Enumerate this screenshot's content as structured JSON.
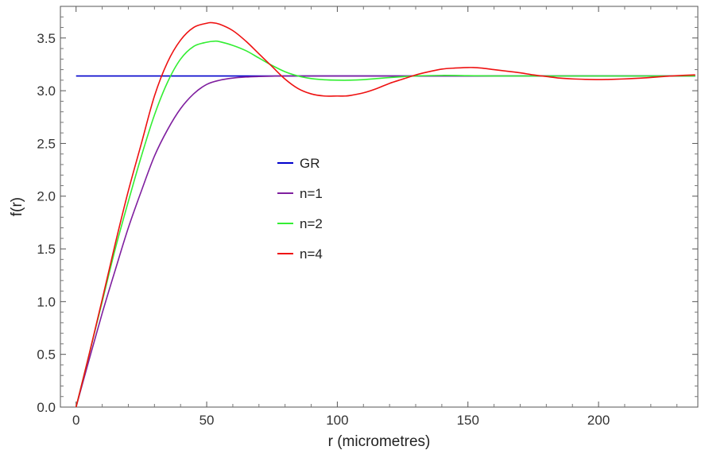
{
  "chart_data": {
    "type": "line",
    "xlabel": "r (micrometres)",
    "ylabel": "f(r)",
    "xlim": [
      -6,
      238
    ],
    "ylim": [
      0,
      3.8
    ],
    "x_ticks": [
      0,
      50,
      100,
      150,
      200
    ],
    "y_ticks": [
      0.0,
      0.5,
      1.0,
      1.5,
      2.0,
      2.5,
      3.0,
      3.5
    ],
    "x_tick_labels": [
      "0",
      "50",
      "100",
      "150",
      "200"
    ],
    "y_tick_labels": [
      "0.0",
      "0.5",
      "1.0",
      "1.5",
      "2.0",
      "2.5",
      "3.0",
      "3.5"
    ],
    "grid": false,
    "legend_position": "center-left",
    "series": [
      {
        "name": "GR",
        "color": "#0000cc",
        "x": [
          0,
          50,
          100,
          150,
          200,
          237
        ],
        "y": [
          3.14,
          3.14,
          3.14,
          3.14,
          3.14,
          3.14
        ]
      },
      {
        "name": "n=1",
        "color": "#7f1f9f",
        "x": [
          0,
          5,
          10,
          15,
          20,
          25,
          30,
          35,
          40,
          45,
          50,
          55,
          60,
          65,
          70,
          75,
          80,
          90,
          100,
          120,
          150,
          200,
          237
        ],
        "y": [
          0.0,
          0.45,
          0.89,
          1.3,
          1.7,
          2.05,
          2.38,
          2.63,
          2.83,
          2.97,
          3.06,
          3.1,
          3.12,
          3.13,
          3.135,
          3.138,
          3.14,
          3.14,
          3.14,
          3.14,
          3.14,
          3.14,
          3.14
        ]
      },
      {
        "name": "n=2",
        "color": "#33ee33",
        "x": [
          0,
          5,
          10,
          15,
          20,
          25,
          30,
          35,
          40,
          45,
          50,
          53,
          55,
          60,
          65,
          70,
          75,
          80,
          85,
          90,
          95,
          100,
          105,
          110,
          115,
          120,
          130,
          140,
          150,
          160,
          180,
          200,
          237
        ],
        "y": [
          0.0,
          0.5,
          1.0,
          1.5,
          1.95,
          2.38,
          2.77,
          3.08,
          3.3,
          3.42,
          3.46,
          3.47,
          3.465,
          3.43,
          3.38,
          3.31,
          3.24,
          3.18,
          3.14,
          3.115,
          3.104,
          3.1,
          3.1,
          3.105,
          3.115,
          3.125,
          3.14,
          3.145,
          3.143,
          3.14,
          3.14,
          3.14,
          3.14
        ]
      },
      {
        "name": "n=4",
        "color": "#ee1111",
        "x": [
          0,
          5,
          10,
          15,
          20,
          25,
          30,
          35,
          40,
          45,
          50,
          52,
          55,
          60,
          65,
          70,
          75,
          80,
          85,
          90,
          95,
          100,
          103,
          105,
          110,
          115,
          120,
          125,
          130,
          135,
          140,
          145,
          150,
          152,
          155,
          160,
          165,
          170,
          175,
          180,
          185,
          190,
          195,
          200,
          205,
          210,
          215,
          220,
          225,
          230,
          237
        ],
        "y": [
          0.0,
          0.5,
          1.02,
          1.55,
          2.05,
          2.5,
          2.95,
          3.27,
          3.48,
          3.6,
          3.64,
          3.645,
          3.63,
          3.57,
          3.47,
          3.35,
          3.23,
          3.11,
          3.02,
          2.97,
          2.95,
          2.95,
          2.95,
          2.955,
          2.98,
          3.02,
          3.07,
          3.11,
          3.15,
          3.18,
          3.205,
          3.215,
          3.22,
          3.22,
          3.215,
          3.2,
          3.185,
          3.17,
          3.15,
          3.135,
          3.12,
          3.112,
          3.108,
          3.106,
          3.108,
          3.112,
          3.118,
          3.126,
          3.135,
          3.143,
          3.15
        ]
      }
    ]
  }
}
